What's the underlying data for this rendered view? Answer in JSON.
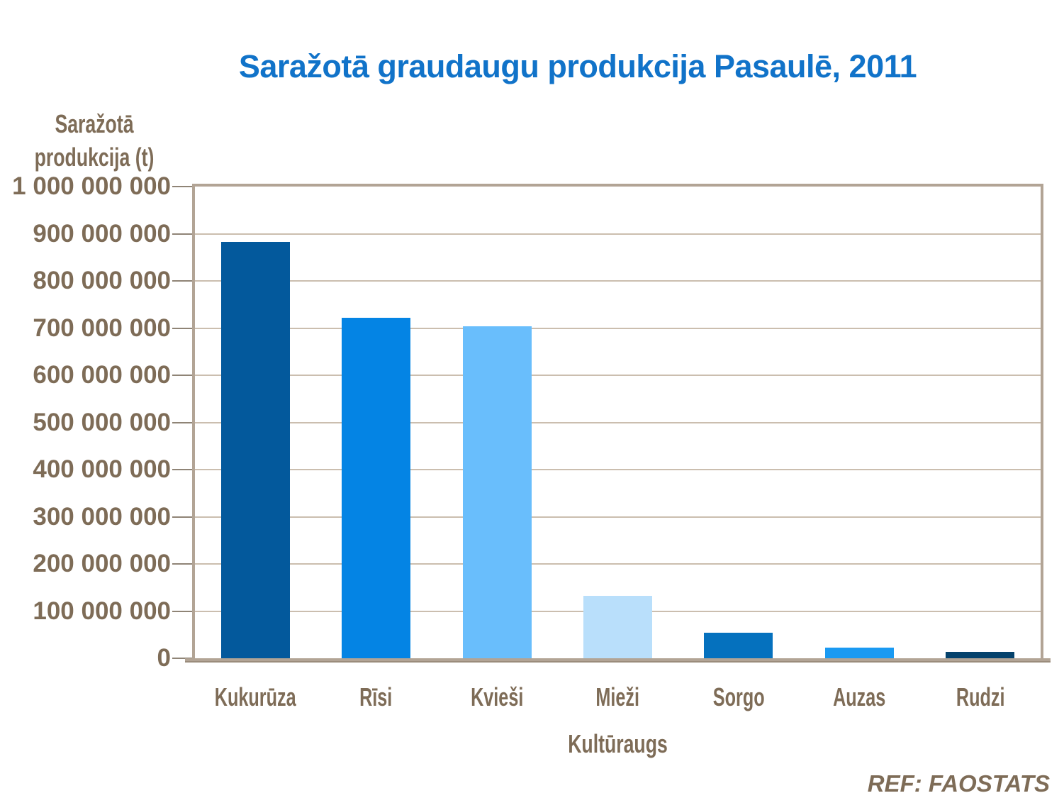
{
  "figure": {
    "title": "Saražotā graudaugu produkcija Pasaulē, 2011",
    "source": "REF: FAOSTATS"
  },
  "chart_data": {
    "type": "bar",
    "title": "Saražotā graudaugu produkcija Pasaulē, 2011",
    "xlabel": "Kultūraugs",
    "ylabel": "Saražotā\nprodukcija (t)",
    "categories": [
      "Kukurūza",
      "Rīsi",
      "Kvieši",
      "Mieži",
      "Sorgo",
      "Auzas",
      "Rudzi"
    ],
    "values": [
      883000000,
      722000000,
      704000000,
      133000000,
      54000000,
      22000000,
      13000000
    ],
    "bar_colors": [
      "#03599C",
      "#0484E4",
      "#69BEFC",
      "#B9DFFB",
      "#0571BE",
      "#1A9AF2",
      "#05426C"
    ],
    "ylim": [
      0,
      1000000000
    ],
    "ytick_step": 100000000,
    "ytick_labels": [
      "0",
      "100 000 000",
      "200 000 000",
      "300 000 000",
      "400 000 000",
      "500 000 000",
      "600 000 000",
      "700 000 000",
      "800 000 000",
      "900 000 000",
      "1 000 000 000"
    ],
    "grid": true,
    "legend": false,
    "source": "REF: FAOSTATS"
  },
  "colors": {
    "title_text": "#1173C9",
    "axis_text": "#7E6C57",
    "plot_border": "#B2A495",
    "gridline": "#CBBEAF",
    "tick_mark": "#8F8476",
    "axis_line": "#B2A495",
    "background": "#FFFFFF"
  }
}
